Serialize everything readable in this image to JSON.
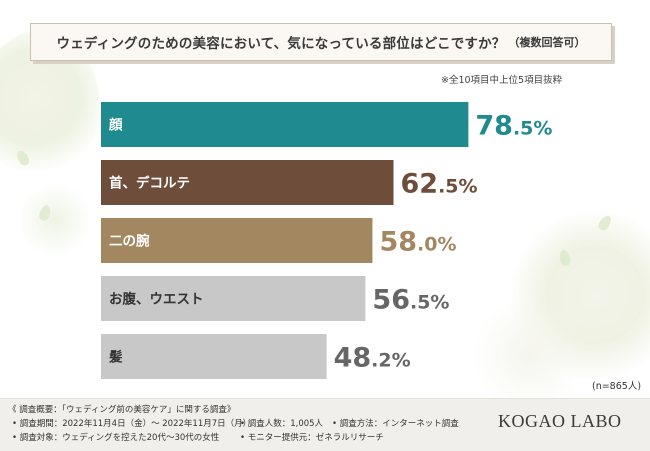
{
  "title": {
    "main": "ウェディングのための美容において、気になっている部位はどこですか？",
    "note": "（複数回答可）"
  },
  "subnote": "※全10項目中上位5項目抜粋",
  "sample": "(n=865人)",
  "chart_data": {
    "type": "bar",
    "orientation": "horizontal",
    "categories": [
      "顔",
      "首、デコルテ",
      "二の腕",
      "お腹、ウエスト",
      "髪"
    ],
    "values": [
      78.5,
      62.5,
      58.0,
      56.5,
      48.2
    ],
    "value_labels": [
      "78.5%",
      "62.5%",
      "58.0%",
      "56.5%",
      "48.2%"
    ],
    "unit": "%",
    "colors": [
      "#1f8a8f",
      "#6e4e3a",
      "#a38760",
      "#c8c8c8",
      "#c8c8c8"
    ],
    "value_colors": [
      "#1f8a8f",
      "#6e4e3a",
      "#a38760",
      "#666666",
      "#666666"
    ],
    "xlim": [
      0,
      100
    ],
    "grid": false,
    "legend": "none"
  },
  "footer": {
    "line1": "《 調査概要：「ウェディング前の美容ケア」に関する調査》",
    "period": "• 調査期間：2022年11月4日（金）～ 2022年11月7日（月）",
    "count": "• 調査人数：1,005人",
    "method": "• 調査方法：インターネット調査",
    "target": "• 調査対象：ウェディングを控えた20代～30代の女性",
    "provider": "• モニター提供元：ゼネラルリサーチ",
    "logo": "KOGAO LABO"
  }
}
